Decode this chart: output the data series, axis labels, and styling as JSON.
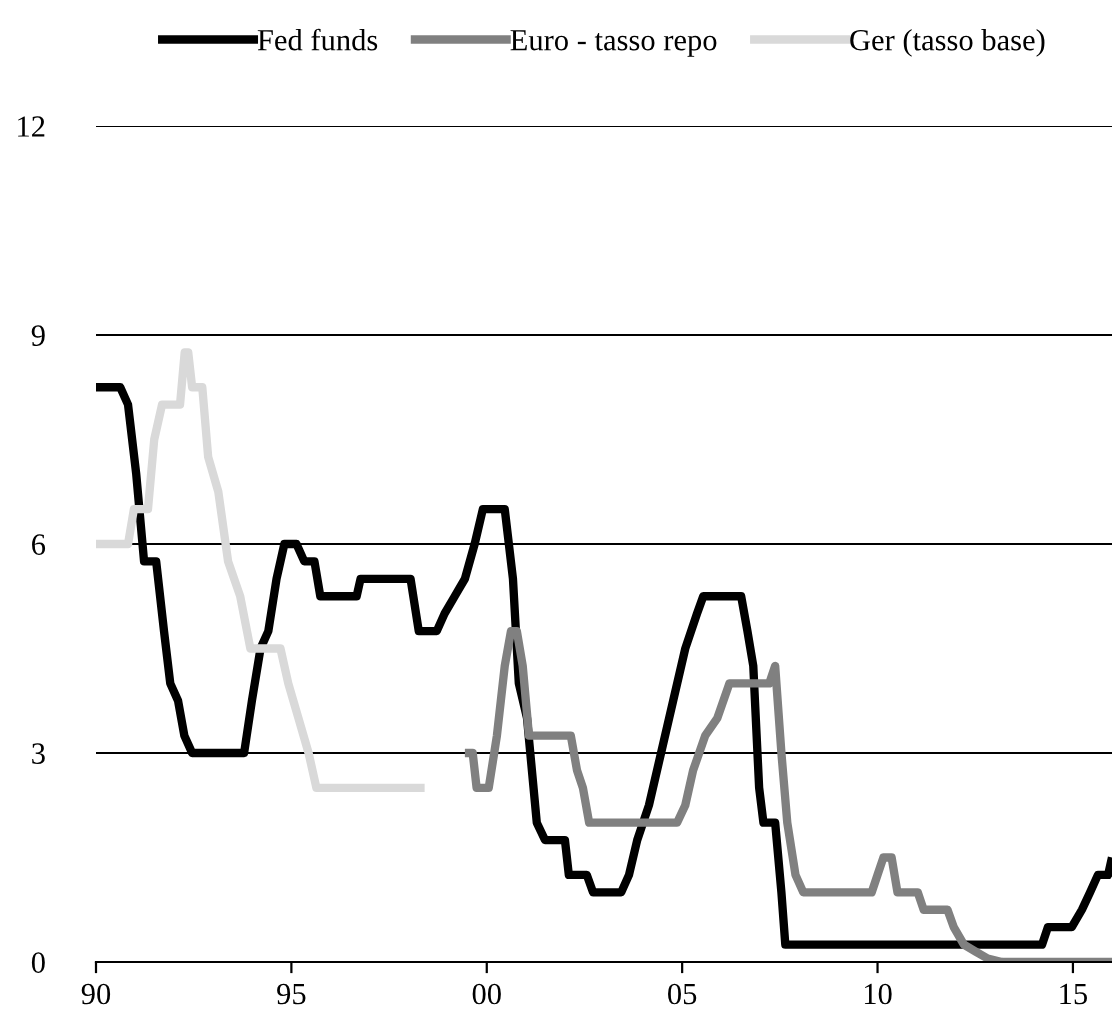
{
  "chart_data": {
    "type": "step",
    "legend": "top",
    "grid": "y",
    "line_style": "solid",
    "marker": "none",
    "xlim": [
      1990,
      2016
    ],
    "ylim": [
      0,
      12
    ],
    "yticks": [
      0,
      3,
      6,
      9,
      12
    ],
    "xticks": [
      {
        "value": 1990,
        "label": "90"
      },
      {
        "value": 1995,
        "label": "95"
      },
      {
        "value": 2000,
        "label": "00"
      },
      {
        "value": 2005,
        "label": "05"
      },
      {
        "value": 2010,
        "label": "10"
      },
      {
        "value": 2015,
        "label": "15"
      }
    ],
    "series": [
      {
        "name": "Fed funds",
        "color": "#000000",
        "x": [
          1990.0,
          1990.62,
          1990.82,
          1991.03,
          1991.23,
          1991.54,
          1991.74,
          1991.9,
          1992.1,
          1992.26,
          1992.46,
          1993.79,
          1993.99,
          1994.21,
          1994.41,
          1994.62,
          1994.82,
          1995.13,
          1995.33,
          1995.59,
          1995.74,
          1996.67,
          1996.77,
          1998.05,
          1998.26,
          1998.72,
          1998.92,
          1999.18,
          1999.44,
          1999.69,
          1999.9,
          2000.46,
          2000.67,
          2000.82,
          2001.03,
          2001.28,
          2001.49,
          2002.0,
          2002.1,
          2002.56,
          2002.72,
          2003.44,
          2003.64,
          2003.85,
          2004.15,
          2004.46,
          2004.77,
          2005.08,
          2005.38,
          2005.54,
          2006.51,
          2006.67,
          2006.82,
          2006.97,
          2007.08,
          2007.38,
          2007.54,
          2007.64,
          2014.21,
          2014.36,
          2014.97,
          2015.23,
          2015.44,
          2015.64,
          2015.9,
          2016.0
        ],
        "values": [
          8.25,
          8.25,
          8.0,
          7.0,
          5.75,
          5.75,
          4.75,
          4.0,
          3.75,
          3.25,
          3.0,
          3.0,
          3.75,
          4.5,
          4.75,
          5.5,
          6.0,
          6.0,
          5.75,
          5.75,
          5.25,
          5.25,
          5.5,
          5.5,
          4.75,
          4.75,
          5.0,
          5.25,
          5.5,
          6.0,
          6.5,
          6.5,
          5.5,
          4.0,
          3.5,
          2.0,
          1.75,
          1.75,
          1.25,
          1.25,
          1.0,
          1.0,
          1.25,
          1.75,
          2.25,
          3.0,
          3.75,
          4.5,
          5.0,
          5.25,
          5.25,
          4.75,
          4.25,
          2.5,
          2.0,
          2.0,
          1.0,
          0.25,
          0.25,
          0.5,
          0.5,
          0.75,
          1.0,
          1.25,
          1.25,
          1.5
        ]
      },
      {
        "name": "Euro - tasso repo",
        "color": "#808080",
        "x": [
          1999.44,
          1999.64,
          1999.74,
          2000.05,
          2000.26,
          2000.46,
          2000.62,
          2000.77,
          2000.92,
          2001.08,
          2002.15,
          2002.31,
          2002.46,
          2002.62,
          2004.87,
          2005.08,
          2005.28,
          2005.59,
          2005.9,
          2006.21,
          2007.23,
          2007.38,
          2007.54,
          2007.69,
          2007.9,
          2008.1,
          2009.85,
          2010.0,
          2010.15,
          2010.36,
          2010.51,
          2011.03,
          2011.18,
          2011.79,
          2011.95,
          2012.21,
          2012.51,
          2012.82,
          2013.18,
          2016.0
        ],
        "values": [
          3.0,
          3.0,
          2.5,
          2.5,
          3.25,
          4.25,
          4.75,
          4.75,
          4.25,
          3.25,
          3.25,
          2.75,
          2.5,
          2.0,
          2.0,
          2.25,
          2.75,
          3.25,
          3.5,
          4.0,
          4.0,
          4.25,
          3.0,
          2.0,
          1.25,
          1.0,
          1.0,
          1.25,
          1.5,
          1.5,
          1.0,
          1.0,
          0.75,
          0.75,
          0.5,
          0.25,
          0.15,
          0.05,
          0.0,
          0.0
        ]
      },
      {
        "name": "Ger (tasso base)",
        "color": "#d9d9d9",
        "x": [
          1990.0,
          1990.82,
          1990.97,
          1991.33,
          1991.49,
          1991.69,
          1992.15,
          1992.27,
          1992.36,
          1992.46,
          1992.72,
          1992.87,
          1993.13,
          1993.38,
          1993.69,
          1993.95,
          1994.72,
          1994.92,
          1995.18,
          1995.44,
          1995.64,
          1998.41
        ],
        "values": [
          6.0,
          6.0,
          6.5,
          6.5,
          7.5,
          8.0,
          8.0,
          8.75,
          8.75,
          8.25,
          8.25,
          7.25,
          6.75,
          5.75,
          5.25,
          4.5,
          4.5,
          4.0,
          3.5,
          3.0,
          2.5,
          2.5
        ]
      }
    ]
  }
}
